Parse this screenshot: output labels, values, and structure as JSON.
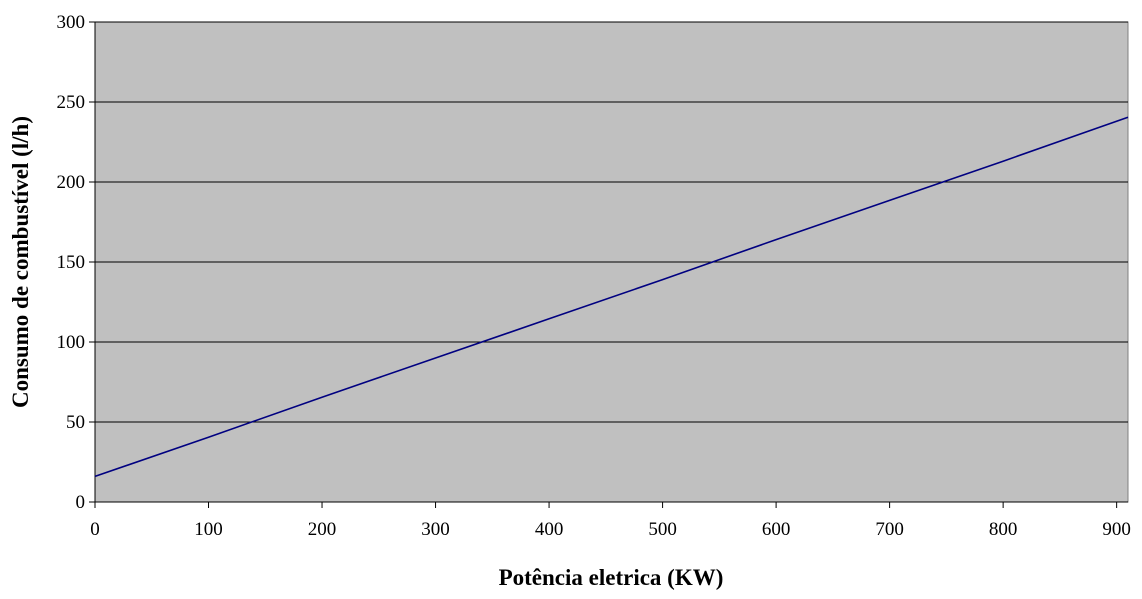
{
  "chart_data": {
    "type": "line",
    "title": "",
    "xlabel": "Potência eletrica (KW)",
    "ylabel": "Consumo de combustível (l/h)",
    "xlim": [
      0,
      910
    ],
    "ylim": [
      0,
      300
    ],
    "xticks": [
      0,
      100,
      200,
      300,
      400,
      500,
      600,
      700,
      800,
      900
    ],
    "yticks": [
      0,
      50,
      100,
      150,
      200,
      250,
      300
    ],
    "grid": "horizontal",
    "legend": "none",
    "colors": {
      "plot_background": "#c0c0c0",
      "line": "#000080",
      "gridline": "#000000"
    },
    "series": [
      {
        "values_x": [
          0,
          100,
          200,
          300,
          400,
          500,
          600,
          700,
          800,
          910
        ],
        "values_y": [
          16,
          40.5,
          65.5,
          90,
          114.5,
          139,
          164,
          188.5,
          213,
          240.5
        ]
      }
    ]
  }
}
